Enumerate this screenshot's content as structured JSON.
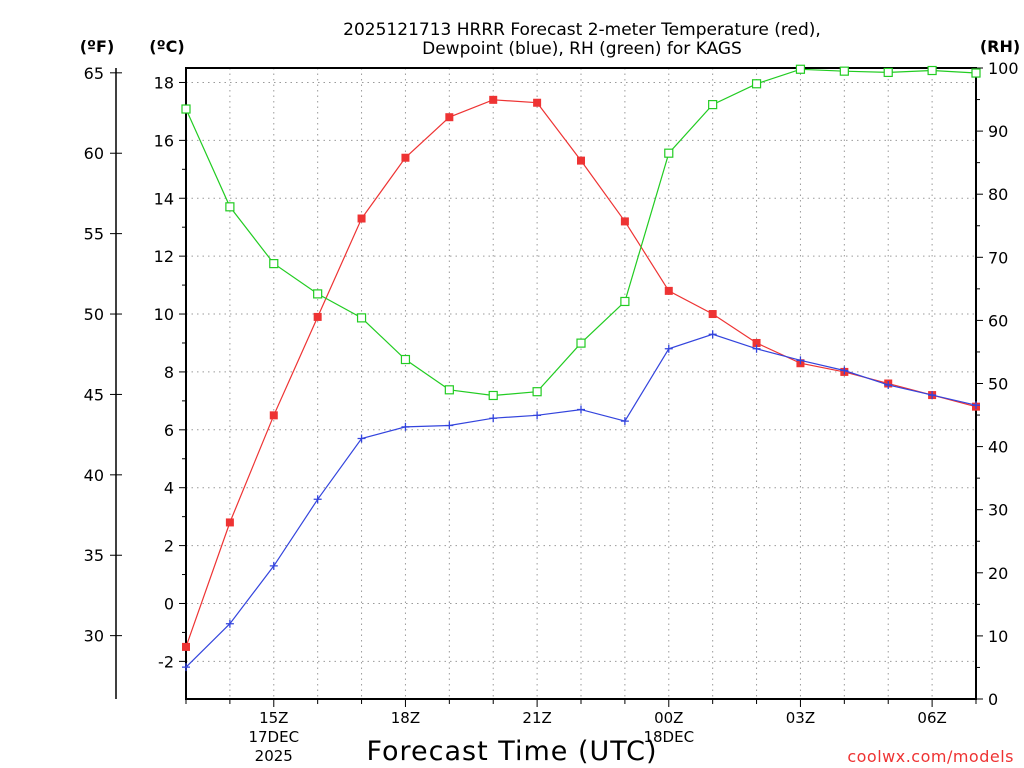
{
  "chart_data": {
    "type": "line",
    "title_line1": "2025121713 HRRR Forecast 2-meter Temperature (red),",
    "title_line2": "Dewpoint (blue), RH (green) for KAGS",
    "xlabel": "Forecast Time (UTC)",
    "credit": "coolwx.com/models",
    "axis_units": {
      "fahrenheit": "(ºF)",
      "celsius": "(ºC)",
      "rh": "(RH)"
    },
    "x_range": [
      13,
      31
    ],
    "y_celsius_range": [
      -3.3,
      18.5
    ],
    "y_rh_range": [
      0,
      100
    ],
    "x_ticks": [
      {
        "x": 15,
        "line1": "15Z",
        "line2": "17DEC",
        "line3": "2025"
      },
      {
        "x": 18,
        "line1": "18Z",
        "line2": "",
        "line3": ""
      },
      {
        "x": 21,
        "line1": "21Z",
        "line2": "",
        "line3": ""
      },
      {
        "x": 24,
        "line1": "00Z",
        "line2": "18DEC",
        "line3": ""
      },
      {
        "x": 27,
        "line1": "03Z",
        "line2": "",
        "line3": ""
      },
      {
        "x": 30,
        "line1": "06Z",
        "line2": "",
        "line3": ""
      }
    ],
    "celsius_ticks": [
      "-2",
      "0",
      "2",
      "4",
      "6",
      "8",
      "10",
      "12",
      "14",
      "16",
      "18"
    ],
    "fahrenheit_ticks": [
      "30",
      "35",
      "40",
      "45",
      "50",
      "55",
      "60",
      "65"
    ],
    "rh_ticks": [
      "0",
      "10",
      "20",
      "30",
      "40",
      "50",
      "60",
      "70",
      "80",
      "90",
      "100"
    ],
    "x": [
      13,
      14,
      15,
      16,
      17,
      18,
      19,
      20,
      21,
      22,
      23,
      24,
      25,
      26,
      27,
      28,
      29,
      30,
      31
    ],
    "series": [
      {
        "name": "2-meter Temperature",
        "axis": "celsius",
        "color": "#ee3333",
        "marker": "filled-square",
        "values": [
          -1.5,
          2.8,
          6.5,
          9.9,
          13.3,
          15.4,
          16.8,
          17.4,
          17.3,
          15.3,
          13.2,
          10.8,
          10.0,
          9.0,
          8.3,
          8.0,
          7.6,
          7.2,
          6.8
        ]
      },
      {
        "name": "Dewpoint",
        "axis": "celsius",
        "color": "#3344dd",
        "marker": "plus",
        "values": [
          -2.2,
          -0.7,
          1.3,
          3.6,
          5.7,
          6.1,
          6.15,
          6.4,
          6.5,
          6.7,
          6.3,
          8.8,
          9.3,
          8.8,
          8.4,
          8.05,
          7.55,
          7.2,
          6.85
        ]
      },
      {
        "name": "Relative Humidity",
        "axis": "rh",
        "color": "#22cc22",
        "marker": "open-square",
        "values": [
          93.5,
          78,
          69,
          64.2,
          60.4,
          53.8,
          49,
          48.1,
          48.7,
          56.4,
          63,
          86.5,
          94.2,
          97.5,
          99.8,
          99.5,
          99.3,
          99.6,
          99.2
        ]
      }
    ]
  }
}
